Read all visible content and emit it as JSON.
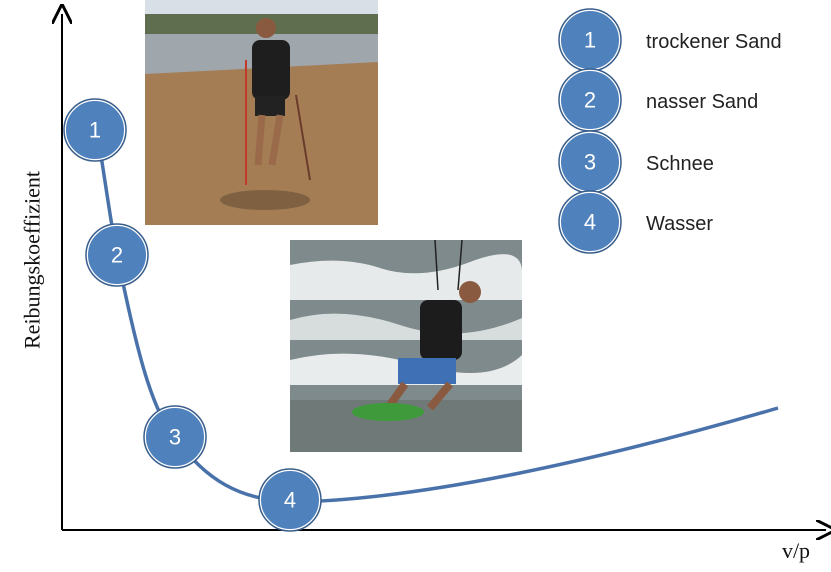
{
  "axes": {
    "y_label": "Reibungskoeffizient",
    "x_label": "v/p"
  },
  "curve_markers": [
    "1",
    "2",
    "3",
    "4"
  ],
  "legend": [
    {
      "number": "1",
      "label": "trockener Sand"
    },
    {
      "number": "2",
      "label": "nasser Sand"
    },
    {
      "number": "3",
      "label": "Schnee"
    },
    {
      "number": "4",
      "label": "Wasser"
    }
  ]
}
